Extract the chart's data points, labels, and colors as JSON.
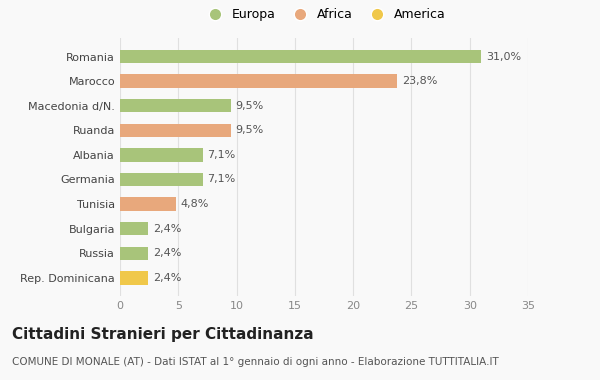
{
  "countries": [
    "Romania",
    "Marocco",
    "Macedonia d/N.",
    "Ruanda",
    "Albania",
    "Germania",
    "Tunisia",
    "Bulgaria",
    "Russia",
    "Rep. Dominicana"
  ],
  "values": [
    31.0,
    23.8,
    9.5,
    9.5,
    7.1,
    7.1,
    4.8,
    2.4,
    2.4,
    2.4
  ],
  "labels": [
    "31,0%",
    "23,8%",
    "9,5%",
    "9,5%",
    "7,1%",
    "7,1%",
    "4,8%",
    "2,4%",
    "2,4%",
    "2,4%"
  ],
  "colors": [
    "#a8c47a",
    "#e8a87c",
    "#a8c47a",
    "#e8a87c",
    "#a8c47a",
    "#a8c47a",
    "#e8a87c",
    "#a8c47a",
    "#a8c47a",
    "#f0c84a"
  ],
  "legend_labels": [
    "Europa",
    "Africa",
    "America"
  ],
  "legend_colors": [
    "#a8c47a",
    "#e8a87c",
    "#f0c84a"
  ],
  "xlim": [
    0,
    35
  ],
  "xticks": [
    0,
    5,
    10,
    15,
    20,
    25,
    30,
    35
  ],
  "title": "Cittadini Stranieri per Cittadinanza",
  "subtitle": "COMUNE DI MONALE (AT) - Dati ISTAT al 1° gennaio di ogni anno - Elaborazione TUTTITALIA.IT",
  "bg_color": "#f9f9f9",
  "grid_color": "#e0e0e0",
  "bar_height": 0.55,
  "title_fontsize": 11,
  "subtitle_fontsize": 7.5,
  "label_fontsize": 8,
  "tick_fontsize": 8
}
